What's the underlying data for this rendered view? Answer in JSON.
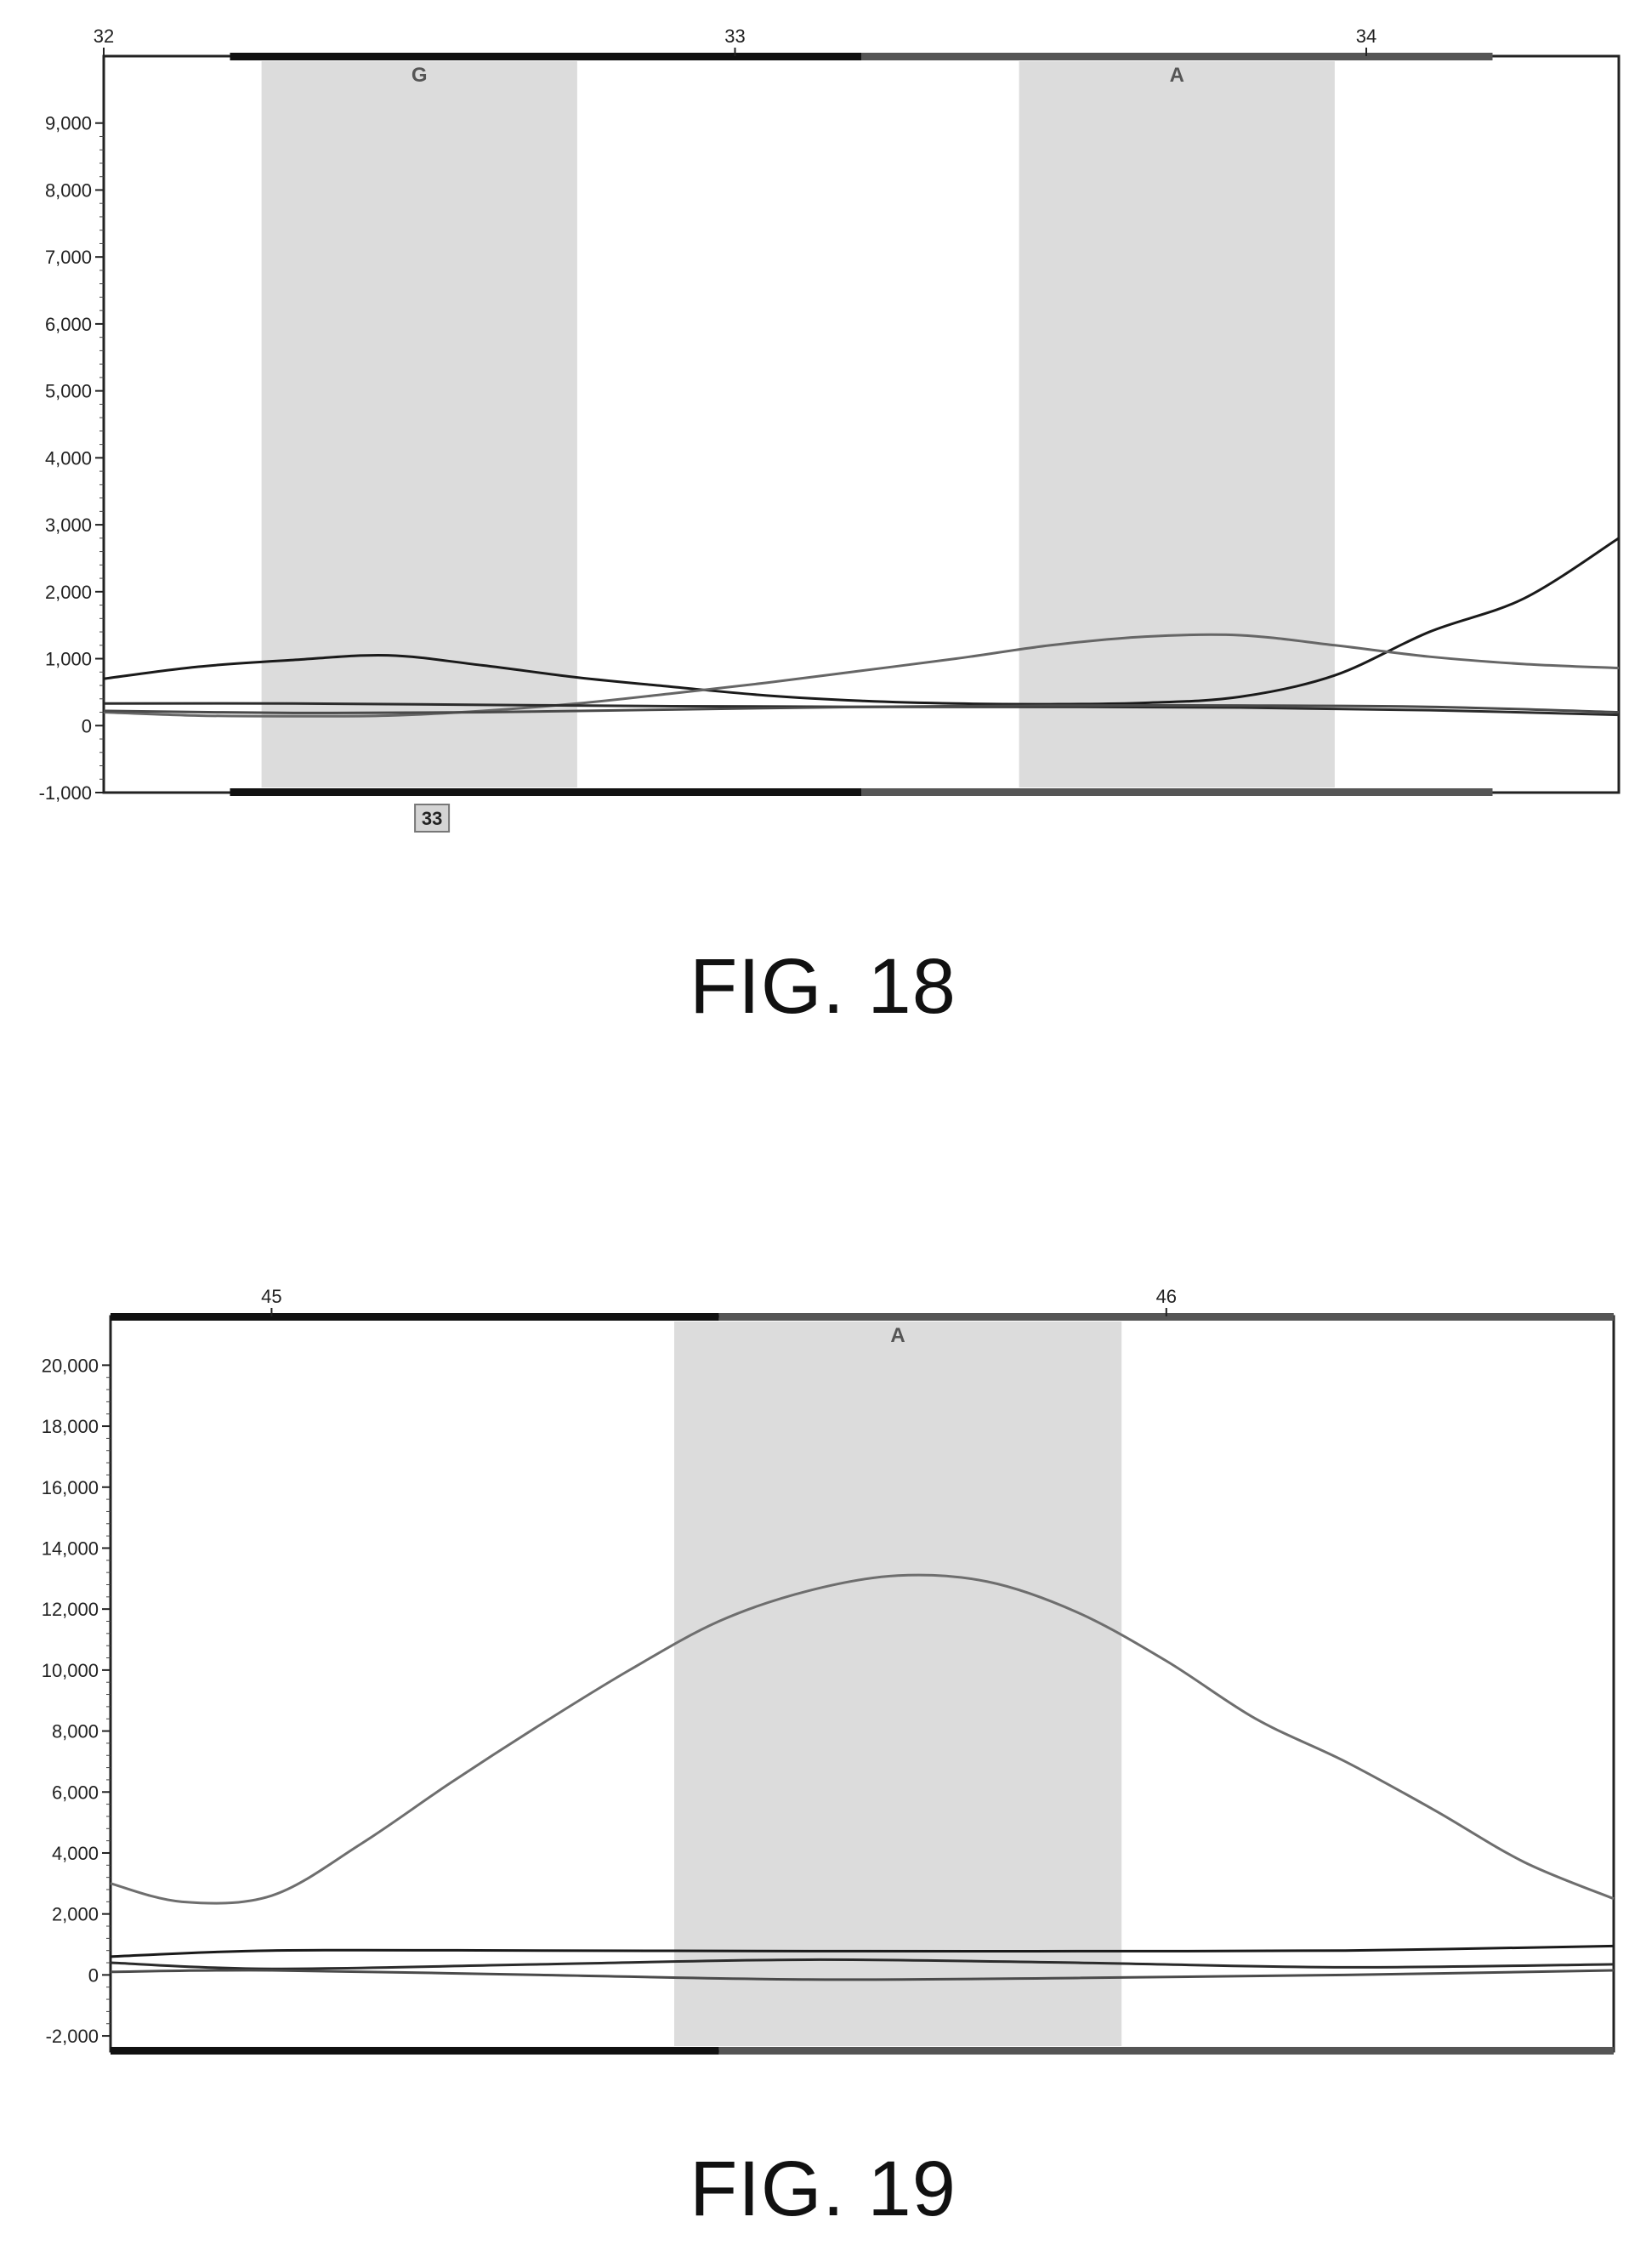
{
  "figures": [
    {
      "caption": "FIG. 18",
      "chart_data": {
        "type": "line",
        "x_ticks": [
          "32",
          "33",
          "34"
        ],
        "x_range": [
          32,
          34.4
        ],
        "ylim": [
          -1000,
          10000
        ],
        "y_ticks": [
          -1000,
          0,
          1000,
          2000,
          3000,
          4000,
          5000,
          6000,
          7000,
          8000,
          9000
        ],
        "y_tick_labels": [
          "-1,000",
          "0",
          "1,000",
          "2,000",
          "3,000",
          "4,000",
          "5,000",
          "6,000",
          "7,000",
          "8,000",
          "9,000"
        ],
        "base_calls": [
          {
            "label": "G",
            "x_start": 32.25,
            "x_end": 32.75
          },
          {
            "label": "A",
            "x_start": 33.45,
            "x_end": 33.95
          }
        ],
        "top_bar": [
          {
            "x_start": 32.2,
            "x_end": 33.2,
            "tone": "dark"
          },
          {
            "x_start": 33.2,
            "x_end": 34.2,
            "tone": "light"
          }
        ],
        "position_badge": {
          "label": "33",
          "x": 32.52
        },
        "series": [
          {
            "color": "#1a1a1a",
            "x": [
              32.0,
              32.15,
              32.3,
              32.45,
              32.6,
              32.75,
              32.9,
              33.05,
              33.2,
              33.35,
              33.5,
              33.65,
              33.8,
              33.95,
              34.1,
              34.25,
              34.4
            ],
            "y": [
              700,
              880,
              980,
              1050,
              900,
              720,
              580,
              450,
              370,
              330,
              320,
              340,
              430,
              750,
              1400,
              1900,
              2800
            ]
          },
          {
            "color": "#666666",
            "x": [
              32.0,
              32.15,
              32.3,
              32.45,
              32.6,
              32.75,
              32.9,
              33.05,
              33.2,
              33.35,
              33.5,
              33.65,
              33.8,
              33.95,
              34.1,
              34.25,
              34.4
            ],
            "y": [
              200,
              150,
              140,
              150,
              220,
              330,
              480,
              640,
              820,
              1000,
              1200,
              1330,
              1350,
              1200,
              1030,
              920,
              860
            ]
          },
          {
            "color": "#2b2b2b",
            "x": [
              32.0,
              32.3,
              32.6,
              32.9,
              33.2,
              33.5,
              33.8,
              34.1,
              34.4
            ],
            "y": [
              330,
              330,
              310,
              290,
              280,
              280,
              270,
              230,
              160
            ]
          },
          {
            "color": "#4a4a4a",
            "x": [
              32.0,
              32.3,
              32.6,
              32.9,
              33.2,
              33.5,
              33.8,
              34.1,
              34.4
            ],
            "y": [
              220,
              190,
              200,
              240,
              280,
              300,
              300,
              280,
              200
            ]
          }
        ]
      }
    },
    {
      "caption": "FIG. 19",
      "chart_data": {
        "type": "line",
        "x_ticks": [
          "45",
          "46"
        ],
        "x_range": [
          44.82,
          46.5
        ],
        "ylim": [
          -2500,
          21600
        ],
        "y_ticks": [
          -2000,
          0,
          2000,
          4000,
          6000,
          8000,
          10000,
          12000,
          14000,
          16000,
          18000,
          20000
        ],
        "y_tick_labels": [
          "-2,000",
          "0",
          "2,000",
          "4,000",
          "6,000",
          "8,000",
          "10,000",
          "12,000",
          "14,000",
          "16,000",
          "18,000",
          "20,000"
        ],
        "base_calls": [
          {
            "label": "A",
            "x_start": 45.45,
            "x_end": 45.95
          }
        ],
        "top_bar": [
          {
            "x_start": 44.82,
            "x_end": 45.5,
            "tone": "dark"
          },
          {
            "x_start": 45.5,
            "x_end": 46.5,
            "tone": "light"
          }
        ],
        "series": [
          {
            "color": "#6e6e6e",
            "x": [
              44.82,
              44.9,
              45.0,
              45.1,
              45.2,
              45.3,
              45.4,
              45.5,
              45.6,
              45.7,
              45.8,
              45.9,
              46.0,
              46.1,
              46.2,
              46.3,
              46.4,
              46.5
            ],
            "y": [
              3000,
              2400,
              2600,
              4300,
              6300,
              8200,
              10000,
              11600,
              12600,
              13100,
              12900,
              11900,
              10300,
              8400,
              7000,
              5400,
              3700,
              2500
            ]
          },
          {
            "color": "#1a1a1a",
            "x": [
              44.82,
              45.0,
              45.3,
              45.6,
              45.9,
              46.2,
              46.5
            ],
            "y": [
              600,
              800,
              800,
              780,
              780,
              800,
              950
            ]
          },
          {
            "color": "#2b2b2b",
            "x": [
              44.82,
              45.0,
              45.3,
              45.6,
              45.9,
              46.2,
              46.5
            ],
            "y": [
              400,
              200,
              350,
              500,
              400,
              250,
              350
            ]
          },
          {
            "color": "#4a4a4a",
            "x": [
              44.82,
              45.0,
              45.3,
              45.6,
              45.9,
              46.2,
              46.5
            ],
            "y": [
              100,
              150,
              0,
              -150,
              -100,
              0,
              150
            ]
          }
        ]
      }
    }
  ]
}
